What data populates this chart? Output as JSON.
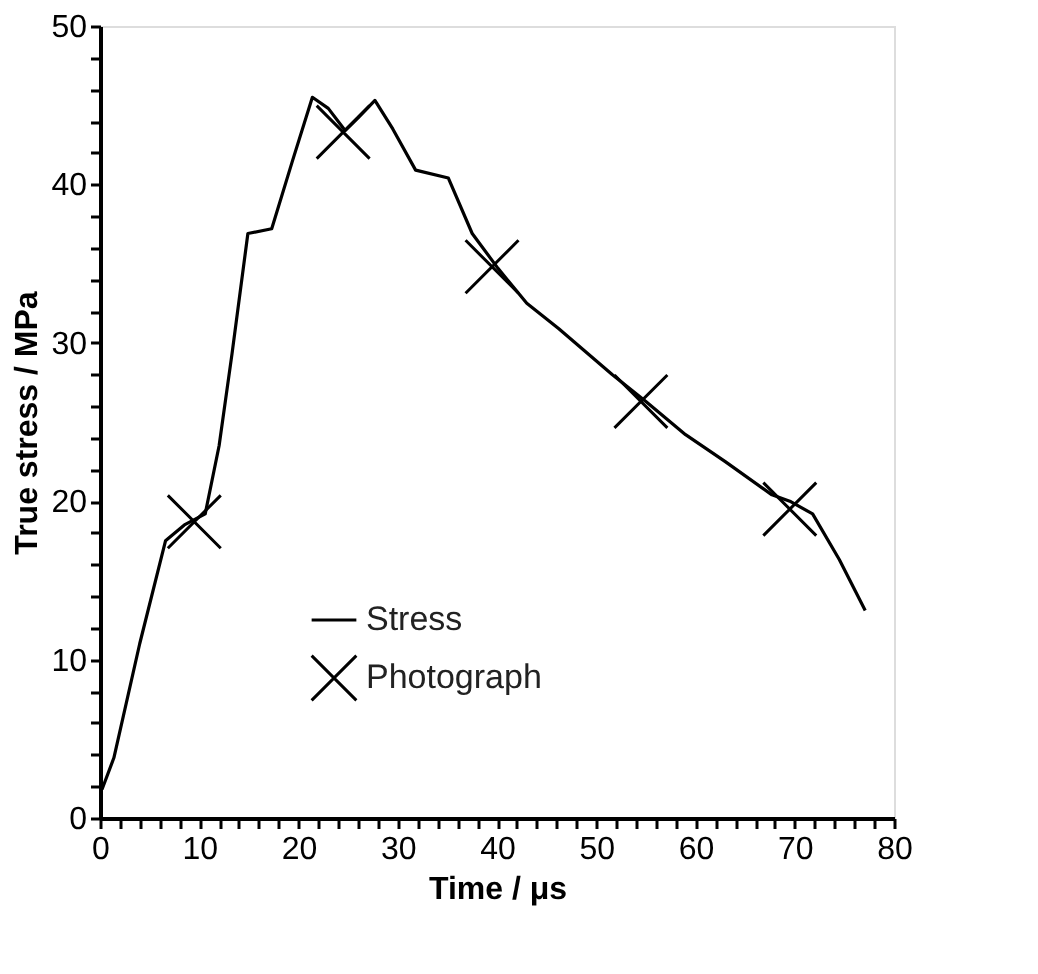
{
  "chart_data": {
    "type": "line",
    "xlabel": "Time / μs",
    "ylabel": "True stress / MPa",
    "xlim": [
      0,
      80
    ],
    "ylim": [
      0,
      50
    ],
    "xticks": [
      0,
      {
        "value": 2,
        "label": null
      },
      {
        "value": 4,
        "label": null
      },
      {
        "value": 6,
        "label": null
      },
      {
        "value": 8,
        "label": null
      },
      10,
      {
        "value": 12,
        "label": null
      },
      {
        "value": 14,
        "label": null
      },
      {
        "value": 16,
        "label": null
      },
      {
        "value": 18,
        "label": null
      },
      20,
      {
        "value": 22,
        "label": null
      },
      {
        "value": 24,
        "label": null
      },
      {
        "value": 26,
        "label": null
      },
      {
        "value": 28,
        "label": null
      },
      30,
      {
        "value": 32,
        "label": null
      },
      {
        "value": 34,
        "label": null
      },
      {
        "value": 36,
        "label": null
      },
      {
        "value": 38,
        "label": null
      },
      40,
      {
        "value": 42,
        "label": null
      },
      {
        "value": 44,
        "label": null
      },
      {
        "value": 46,
        "label": null
      },
      {
        "value": 48,
        "label": null
      },
      50,
      {
        "value": 52,
        "label": null
      },
      {
        "value": 54,
        "label": null
      },
      {
        "value": 56,
        "label": null
      },
      {
        "value": 58,
        "label": null
      },
      60,
      {
        "value": 62,
        "label": null
      },
      {
        "value": 64,
        "label": null
      },
      {
        "value": 66,
        "label": null
      },
      {
        "value": 68,
        "label": null
      },
      70,
      {
        "value": 72,
        "label": null
      },
      {
        "value": 74,
        "label": null
      },
      {
        "value": 76,
        "label": null
      },
      {
        "value": 78,
        "label": null
      },
      80
    ],
    "yticks": [
      0,
      {
        "value": 2,
        "label": null
      },
      {
        "value": 4,
        "label": null
      },
      {
        "value": 6,
        "label": null
      },
      {
        "value": 8,
        "label": null
      },
      10,
      {
        "value": 12,
        "label": null
      },
      {
        "value": 14,
        "label": null
      },
      {
        "value": 16,
        "label": null
      },
      {
        "value": 18,
        "label": null
      },
      20,
      {
        "value": 22,
        "label": null
      },
      {
        "value": 24,
        "label": null
      },
      {
        "value": 26,
        "label": null
      },
      {
        "value": 28,
        "label": null
      },
      30,
      {
        "value": 32,
        "label": null
      },
      {
        "value": 34,
        "label": null
      },
      {
        "value": 36,
        "label": null
      },
      {
        "value": 38,
        "label": null
      },
      40,
      {
        "value": 42,
        "label": null
      },
      {
        "value": 44,
        "label": null
      },
      {
        "value": 46,
        "label": null
      },
      {
        "value": 48,
        "label": null
      },
      50
    ],
    "grid": false,
    "legend": "bottom",
    "series": [
      {
        "name": "Stress",
        "color": "#000000",
        "line_style": "solid",
        "x": [
          0.2,
          1.4,
          4,
          6.6,
          8.5,
          10.6,
          12,
          13.3,
          14.9,
          17.3,
          19.4,
          21.4,
          23,
          24.7,
          26,
          27.7,
          29.5,
          31.8,
          35.1,
          37.5,
          40.1,
          43,
          46.2,
          51.6,
          55,
          59,
          63,
          67.7,
          69.5,
          71.8,
          74.5,
          77.1
        ],
        "values": [
          1.8,
          3.8,
          11,
          17.5,
          18.5,
          19.2,
          23.5,
          29.3,
          36.9,
          37.2,
          41.5,
          45.5,
          44.8,
          43.4,
          44.2,
          45.3,
          43.5,
          40.9,
          40.4,
          36.9,
          34.7,
          32.5,
          30.9,
          28.0,
          26.3,
          24.2,
          22.5,
          20.4,
          20.0,
          19.2,
          16.3,
          13.1
        ]
      },
      {
        "name": "Photograph",
        "type": "scatter",
        "marker": "cross",
        "color": "#000000",
        "x": [
          9.5,
          24.5,
          39.5,
          54.5,
          69.5
        ],
        "values": [
          18.7,
          43.3,
          34.8,
          26.3,
          19.5
        ]
      }
    ]
  }
}
